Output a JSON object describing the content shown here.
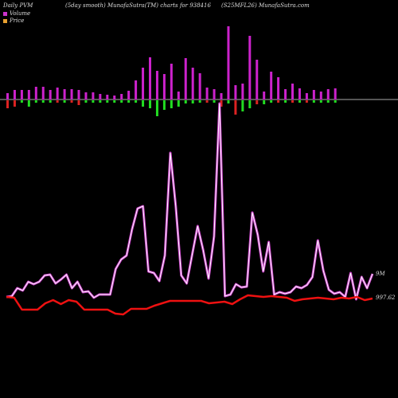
{
  "header": {
    "left": "Daily PVM",
    "middle": "(5day smooth) MunafaSutra(TM) charts for 938416",
    "right": "(S25MFL26) MunafaSutra.com"
  },
  "legend": {
    "items": [
      {
        "label": "Volume",
        "color": "#cc33cc"
      },
      {
        "label": "Price",
        "color": "#e8a030"
      }
    ]
  },
  "chart_data": {
    "type": "bar+line",
    "title": "(5day smooth) MunafaSutra(TM) charts for 938416",
    "colors": {
      "volume_bar": "#cc22cc",
      "change_up": "#22dd22",
      "change_down": "#dd2222",
      "volume_line": "#cc44cc",
      "price_line": "#ee1111",
      "baseline": "#aaaaaa"
    },
    "volume_bars": [
      8,
      12,
      12,
      12,
      16,
      16,
      12,
      15,
      13,
      13,
      12,
      9,
      9,
      7,
      6,
      5,
      7,
      11,
      24,
      40,
      53,
      36,
      32,
      45,
      10,
      52,
      40,
      33,
      15,
      13,
      8,
      92,
      18,
      20,
      80,
      50,
      10,
      35,
      28,
      13,
      20,
      14,
      8,
      12,
      10,
      13,
      14
    ],
    "change_bars": [
      -10,
      -8,
      -3,
      -8,
      -3,
      -3,
      -3,
      -3,
      -3,
      -3,
      -6,
      -3,
      -3,
      -3,
      -3,
      -3,
      -3,
      -3,
      -3,
      -8,
      -10,
      -20,
      -12,
      -10,
      -8,
      -4,
      -4,
      -3,
      -3,
      -3,
      -8,
      -4,
      -18,
      -14,
      -10,
      -5,
      -5,
      -3,
      -3,
      -3,
      -3,
      -3,
      -3,
      -3,
      -3,
      -3,
      -3
    ],
    "change_bar_colors": [
      "r",
      "r",
      "g",
      "g",
      "g",
      "g",
      "g",
      "r",
      "g",
      "r",
      "r",
      "g",
      "g",
      "g",
      "g",
      "g",
      "g",
      "g",
      "g",
      "g",
      "g",
      "g",
      "g",
      "g",
      "g",
      "g",
      "g",
      "g",
      "r",
      "g",
      "r",
      "g",
      "r",
      "g",
      "g",
      "r",
      "g",
      "g",
      "r",
      "g",
      "r",
      "g",
      "r",
      "g",
      "g",
      "g",
      "g"
    ],
    "volume_line": [
      373,
      372,
      362,
      365,
      354,
      357,
      354,
      346,
      345,
      356,
      351,
      345,
      362,
      354,
      367,
      366,
      374,
      370,
      370,
      370,
      338,
      326,
      321,
      288,
      262,
      259,
      341,
      343,
      353,
      321,
      192,
      259,
      346,
      356,
      320,
      284,
      314,
      350,
      297,
      130,
      372,
      370,
      357,
      361,
      360,
      267,
      295,
      341,
      304,
      370,
      367,
      369,
      367,
      360,
      362,
      358,
      348,
      302,
      340,
      364,
      369,
      367,
      373,
      343,
      376,
      348,
      362,
      344
    ],
    "price_line": [
      373,
      374,
      389,
      389,
      389,
      381,
      377,
      382,
      377,
      379,
      389,
      389,
      389,
      389,
      394,
      395,
      388,
      388,
      388,
      384,
      381,
      378,
      378,
      378,
      378,
      378,
      381,
      380,
      379,
      382,
      376,
      371,
      372,
      373,
      372,
      373,
      374,
      378,
      376,
      375,
      374,
      375,
      376,
      374,
      375,
      373,
      377,
      375
    ],
    "annotations": [
      {
        "label": "9M"
      },
      {
        "label": "997.62"
      }
    ]
  }
}
